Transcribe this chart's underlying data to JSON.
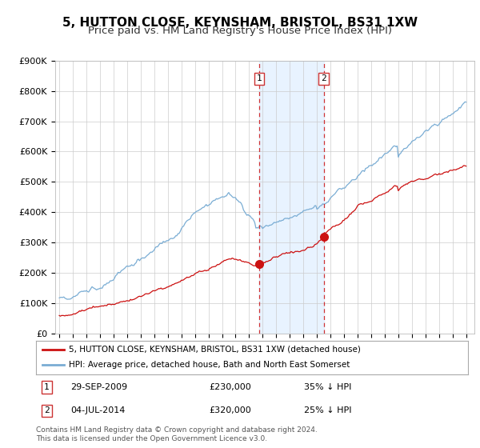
{
  "title": "5, HUTTON CLOSE, KEYNSHAM, BRISTOL, BS31 1XW",
  "subtitle": "Price paid vs. HM Land Registry's House Price Index (HPI)",
  "ylim": [
    0,
    900000
  ],
  "yticks": [
    0,
    100000,
    200000,
    300000,
    400000,
    500000,
    600000,
    700000,
    800000,
    900000
  ],
  "ytick_labels": [
    "£0",
    "£100K",
    "£200K",
    "£300K",
    "£400K",
    "£500K",
    "£600K",
    "£700K",
    "£800K",
    "£900K"
  ],
  "hpi_color": "#7aadd4",
  "price_color": "#cc1111",
  "point1_year": 2009.75,
  "point1_value": 230000,
  "point2_year": 2014.5,
  "point2_value": 320000,
  "legend_red": "5, HUTTON CLOSE, KEYNSHAM, BRISTOL, BS31 1XW (detached house)",
  "legend_blue": "HPI: Average price, detached house, Bath and North East Somerset",
  "footer": "Contains HM Land Registry data © Crown copyright and database right 2024.\nThis data is licensed under the Open Government Licence v3.0.",
  "background_color": "#ffffff",
  "grid_color": "#cccccc",
  "shade_color": "#ddeeff",
  "title_fontsize": 11,
  "subtitle_fontsize": 9.5,
  "xmin": 1994.7,
  "xmax": 2025.6
}
